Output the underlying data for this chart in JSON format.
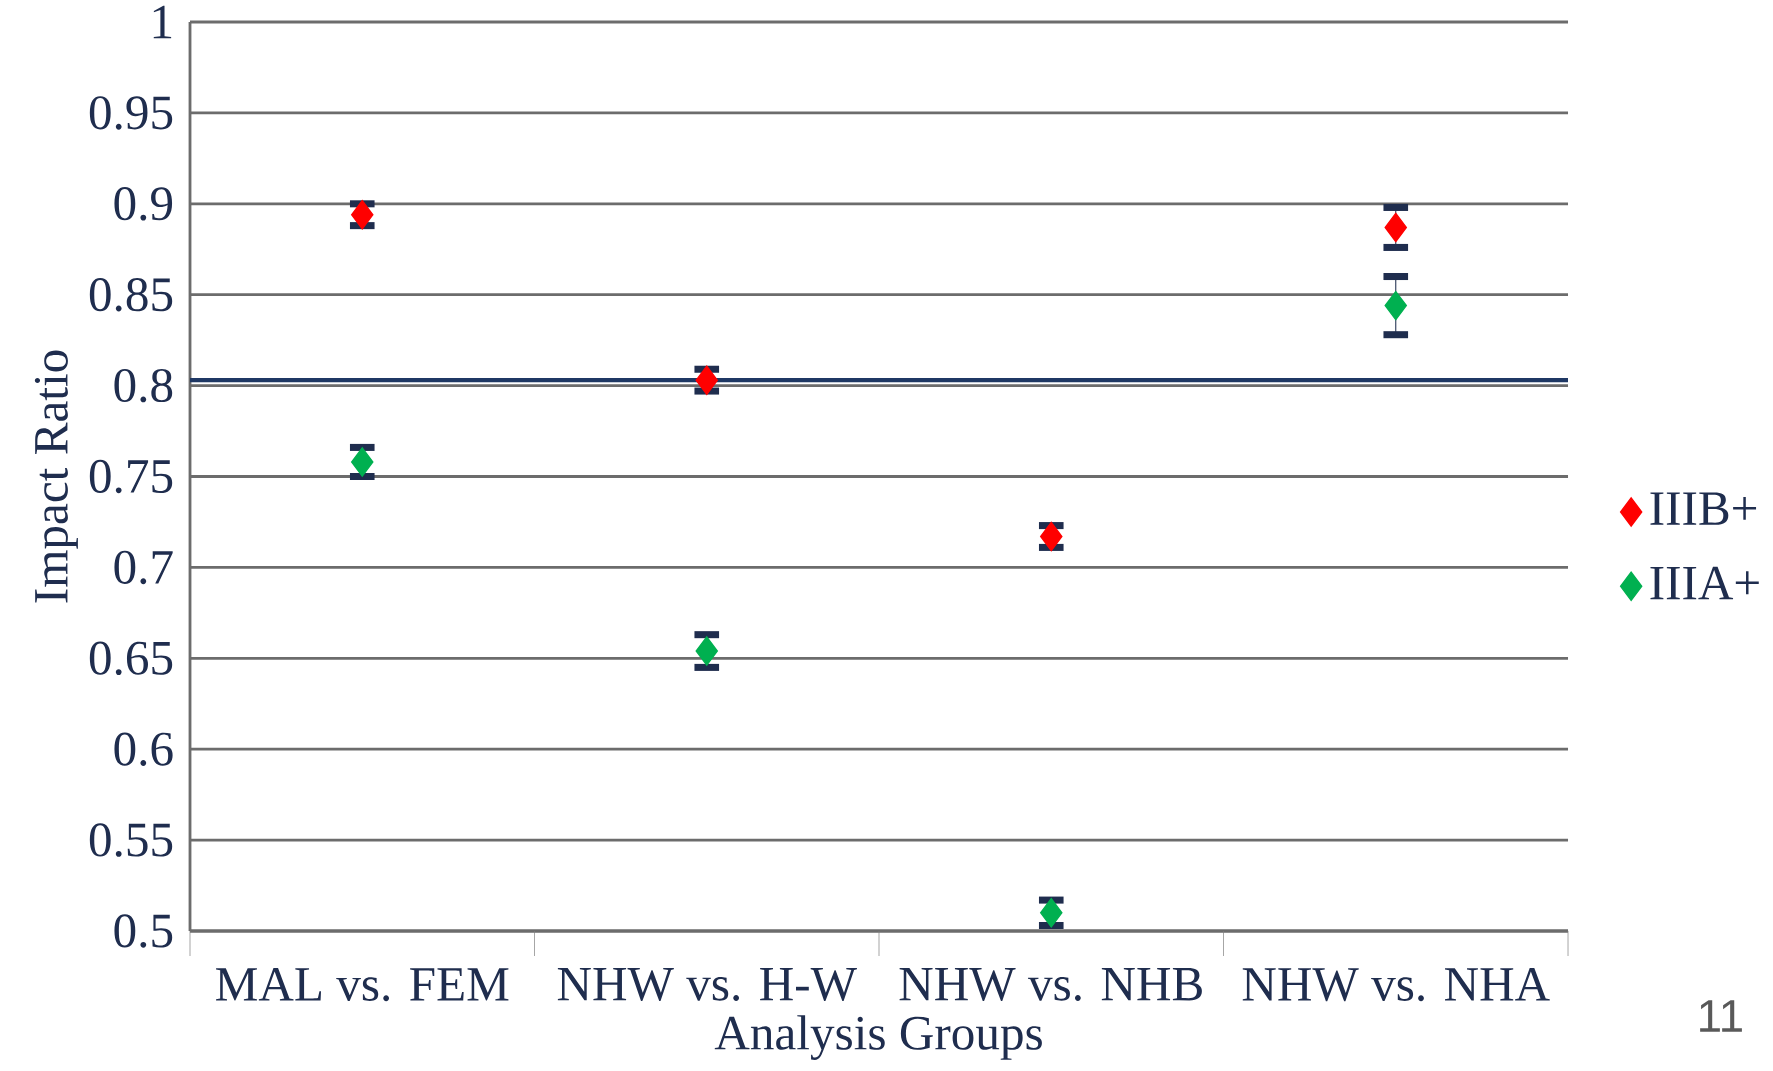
{
  "chart_data": {
    "type": "scatter",
    "xlabel": "Analysis Groups",
    "ylabel": "Impact Ratio",
    "categories": [
      "MAL vs. FEM",
      "NHW vs. H-W",
      "NHW vs. NHB",
      "NHW vs. NHA"
    ],
    "series": [
      {
        "name": "IIIB+",
        "color": "#ff0000",
        "values": [
          0.894,
          0.803,
          0.717,
          0.887
        ],
        "errors": [
          0.006,
          0.006,
          0.006,
          0.011
        ]
      },
      {
        "name": "IIIA+",
        "color": "#00b050",
        "values": [
          0.758,
          0.654,
          0.51,
          0.844
        ],
        "errors": [
          0.008,
          0.009,
          0.007,
          0.016
        ]
      }
    ],
    "ylim": [
      0.5,
      1
    ],
    "yticks": [
      0.5,
      0.55,
      0.6,
      0.65,
      0.7,
      0.75,
      0.8,
      0.85,
      0.9,
      0.95,
      1
    ],
    "ref_lines": [
      {
        "axis": "y",
        "value": 0.803,
        "color": "#1f3864"
      }
    ],
    "grid": "y",
    "legend": "right",
    "marker": "diamond",
    "annotations": [
      "11"
    ]
  }
}
